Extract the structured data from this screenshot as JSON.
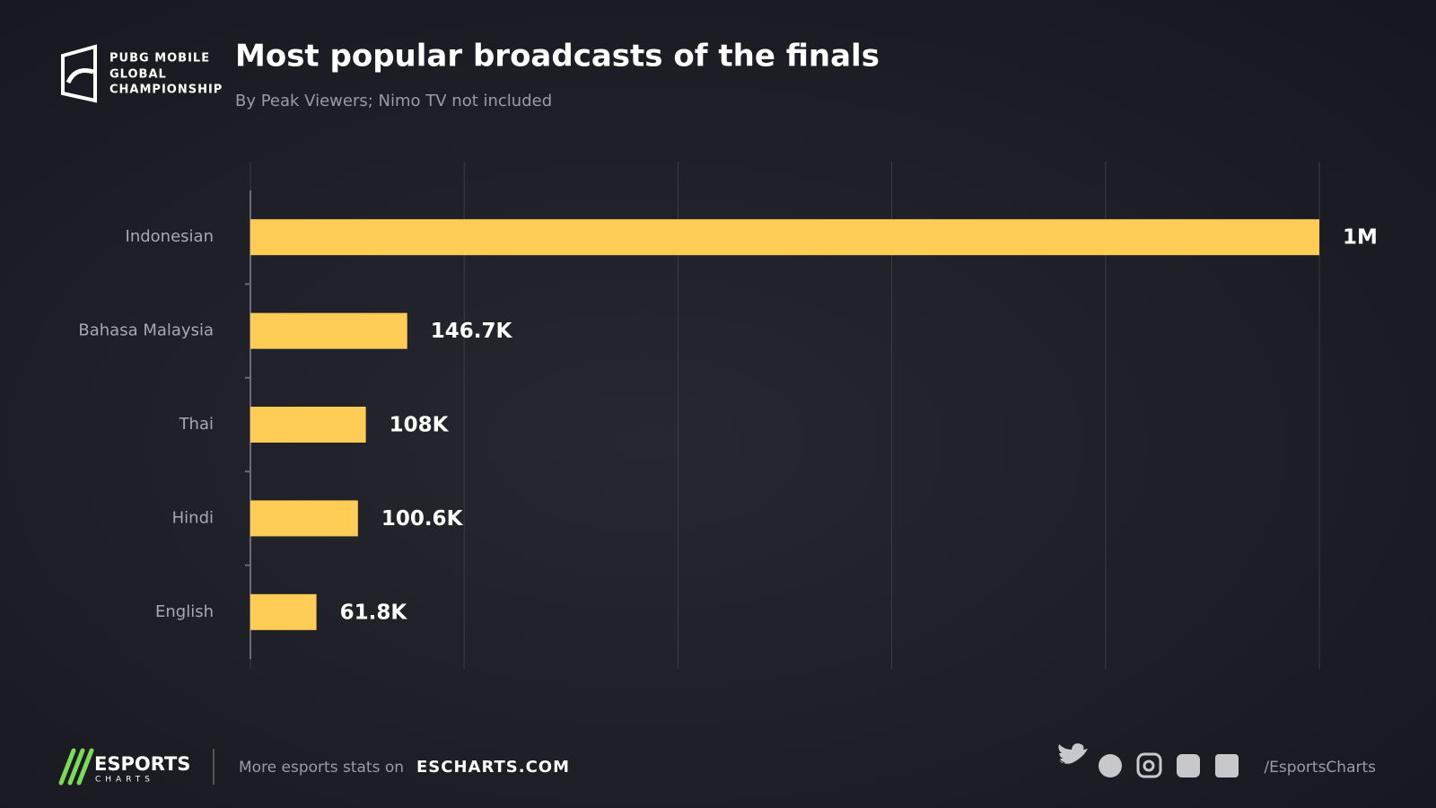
{
  "logo": {
    "lines": [
      "PUBG MOBILE",
      "GLOBAL",
      "CHAMPIONSHIP"
    ]
  },
  "chart_data": {
    "type": "bar",
    "orientation": "horizontal",
    "title": "Most popular broadcasts of the finals",
    "subtitle": "By Peak Viewers; Nimo TV not included",
    "categories": [
      "Indonesian",
      "Bahasa Malaysia",
      "Thai",
      "Hindi",
      "English"
    ],
    "values": [
      1000000,
      146700,
      108000,
      100600,
      61800
    ],
    "value_labels": [
      "1M",
      "146.7K",
      "108K",
      "100.6K",
      "61.8K"
    ],
    "color": "#ffcc55",
    "xlim": [
      0,
      1000000
    ],
    "xticks": [
      0,
      200000,
      400000,
      600000,
      800000,
      1000000
    ],
    "grid": true
  },
  "footer": {
    "brand": "ESPORTS",
    "brand_sub": "CHARTS",
    "prompt": "More esports stats on",
    "site": "ESCHARTS.COM",
    "handle": "/EsportsCharts"
  }
}
